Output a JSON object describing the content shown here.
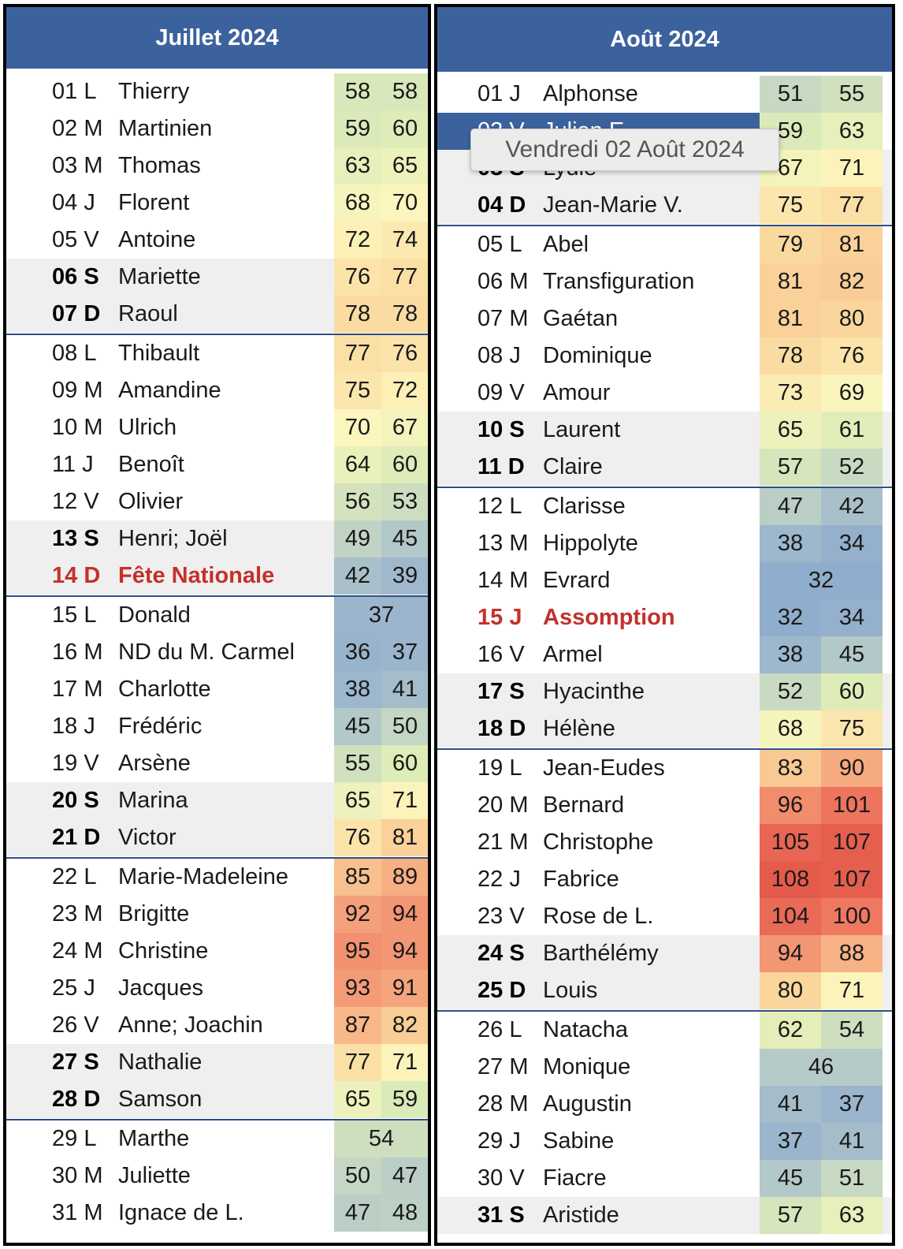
{
  "july": {
    "title": "Juillet 2024",
    "days": [
      {
        "date": "01 L",
        "name": "Thierry",
        "v": [
          58,
          58
        ],
        "weekend": false
      },
      {
        "date": "02 M",
        "name": "Martinien",
        "v": [
          59,
          60
        ],
        "weekend": false
      },
      {
        "date": "03 M",
        "name": "Thomas",
        "v": [
          63,
          65
        ],
        "weekend": false
      },
      {
        "date": "04 J",
        "name": "Florent",
        "v": [
          68,
          70
        ],
        "weekend": false
      },
      {
        "date": "05 V",
        "name": "Antoine",
        "v": [
          72,
          74
        ],
        "weekend": false
      },
      {
        "date": "06 S",
        "name": "Mariette",
        "v": [
          76,
          77
        ],
        "weekend": true
      },
      {
        "date": "07 D",
        "name": "Raoul",
        "v": [
          78,
          78
        ],
        "weekend": true
      },
      {
        "date": "08 L",
        "name": "Thibault",
        "v": [
          77,
          76
        ],
        "weekend": false
      },
      {
        "date": "09 M",
        "name": "Amandine",
        "v": [
          75,
          72
        ],
        "weekend": false
      },
      {
        "date": "10 M",
        "name": "Ulrich",
        "v": [
          70,
          67
        ],
        "weekend": false
      },
      {
        "date": "11 J",
        "name": "Benoît",
        "v": [
          64,
          60
        ],
        "weekend": false
      },
      {
        "date": "12 V",
        "name": "Olivier",
        "v": [
          56,
          53
        ],
        "weekend": false
      },
      {
        "date": "13 S",
        "name": "Henri; Joël",
        "v": [
          49,
          45
        ],
        "weekend": true
      },
      {
        "date": "14 D",
        "name": "Fête Nationale",
        "v": [
          42,
          39
        ],
        "weekend": true,
        "holiday": true
      },
      {
        "date": "15 L",
        "name": "Donald",
        "v": [
          37
        ],
        "weekend": false
      },
      {
        "date": "16 M",
        "name": "ND du M. Carmel",
        "v": [
          36,
          37
        ],
        "weekend": false
      },
      {
        "date": "17 M",
        "name": "Charlotte",
        "v": [
          38,
          41
        ],
        "weekend": false
      },
      {
        "date": "18 J",
        "name": "Frédéric",
        "v": [
          45,
          50
        ],
        "weekend": false
      },
      {
        "date": "19 V",
        "name": "Arsène",
        "v": [
          55,
          60
        ],
        "weekend": false
      },
      {
        "date": "20 S",
        "name": "Marina",
        "v": [
          65,
          71
        ],
        "weekend": true
      },
      {
        "date": "21 D",
        "name": "Victor",
        "v": [
          76,
          81
        ],
        "weekend": true
      },
      {
        "date": "22 L",
        "name": "Marie-Madeleine",
        "v": [
          85,
          89
        ],
        "weekend": false
      },
      {
        "date": "23 M",
        "name": "Brigitte",
        "v": [
          92,
          94
        ],
        "weekend": false
      },
      {
        "date": "24 M",
        "name": "Christine",
        "v": [
          95,
          94
        ],
        "weekend": false
      },
      {
        "date": "25 J",
        "name": "Jacques",
        "v": [
          93,
          91
        ],
        "weekend": false
      },
      {
        "date": "26 V",
        "name": "Anne; Joachin",
        "v": [
          87,
          82
        ],
        "weekend": false
      },
      {
        "date": "27 S",
        "name": "Nathalie",
        "v": [
          77,
          71
        ],
        "weekend": true
      },
      {
        "date": "28 D",
        "name": "Samson",
        "v": [
          65,
          59
        ],
        "weekend": true
      },
      {
        "date": "29 L",
        "name": "Marthe",
        "v": [
          54
        ],
        "weekend": false
      },
      {
        "date": "30 M",
        "name": "Juliette",
        "v": [
          50,
          47
        ],
        "weekend": false
      },
      {
        "date": "31 M",
        "name": "Ignace de L.",
        "v": [
          47,
          48
        ],
        "weekend": false
      }
    ]
  },
  "august": {
    "title": "Août 2024",
    "days": [
      {
        "date": "01 J",
        "name": "Alphonse",
        "v": [
          51,
          55
        ],
        "weekend": false
      },
      {
        "date": "02 V",
        "name": "Julien E.",
        "v": [
          59,
          63
        ],
        "weekend": false,
        "selected": true
      },
      {
        "date": "03 S",
        "name": "Lydie",
        "v": [
          67,
          71
        ],
        "weekend": true
      },
      {
        "date": "04 D",
        "name": "Jean-Marie V.",
        "v": [
          75,
          77
        ],
        "weekend": true
      },
      {
        "date": "05 L",
        "name": "Abel",
        "v": [
          79,
          81
        ],
        "weekend": false
      },
      {
        "date": "06 M",
        "name": "Transfiguration",
        "v": [
          81,
          82
        ],
        "weekend": false
      },
      {
        "date": "07 M",
        "name": "Gaétan",
        "v": [
          81,
          80
        ],
        "weekend": false
      },
      {
        "date": "08 J",
        "name": "Dominique",
        "v": [
          78,
          76
        ],
        "weekend": false
      },
      {
        "date": "09 V",
        "name": "Amour",
        "v": [
          73,
          69
        ],
        "weekend": false
      },
      {
        "date": "10 S",
        "name": "Laurent",
        "v": [
          65,
          61
        ],
        "weekend": true
      },
      {
        "date": "11 D",
        "name": "Claire",
        "v": [
          57,
          52
        ],
        "weekend": true
      },
      {
        "date": "12 L",
        "name": "Clarisse",
        "v": [
          47,
          42
        ],
        "weekend": false
      },
      {
        "date": "13 M",
        "name": "Hippolyte",
        "v": [
          38,
          34
        ],
        "weekend": false
      },
      {
        "date": "14 M",
        "name": "Evrard",
        "v": [
          32
        ],
        "weekend": false
      },
      {
        "date": "15 J",
        "name": "Assomption",
        "v": [
          32,
          34
        ],
        "weekend": false,
        "holiday": true
      },
      {
        "date": "16 V",
        "name": "Armel",
        "v": [
          38,
          45
        ],
        "weekend": false
      },
      {
        "date": "17 S",
        "name": "Hyacinthe",
        "v": [
          52,
          60
        ],
        "weekend": true
      },
      {
        "date": "18 D",
        "name": "Hélène",
        "v": [
          68,
          75
        ],
        "weekend": true
      },
      {
        "date": "19 L",
        "name": "Jean-Eudes",
        "v": [
          83,
          90
        ],
        "weekend": false
      },
      {
        "date": "20 M",
        "name": "Bernard",
        "v": [
          96,
          101
        ],
        "weekend": false
      },
      {
        "date": "21 M",
        "name": "Christophe",
        "v": [
          105,
          107
        ],
        "weekend": false
      },
      {
        "date": "22 J",
        "name": "Fabrice",
        "v": [
          108,
          107
        ],
        "weekend": false
      },
      {
        "date": "23 V",
        "name": "Rose de L.",
        "v": [
          104,
          100
        ],
        "weekend": false
      },
      {
        "date": "24 S",
        "name": "Barthélémy",
        "v": [
          94,
          88
        ],
        "weekend": true
      },
      {
        "date": "25 D",
        "name": "Louis",
        "v": [
          80,
          71
        ],
        "weekend": true
      },
      {
        "date": "26 L",
        "name": "Natacha",
        "v": [
          62,
          54
        ],
        "weekend": false
      },
      {
        "date": "27 M",
        "name": "Monique",
        "v": [
          46
        ],
        "weekend": false
      },
      {
        "date": "28 M",
        "name": "Augustin",
        "v": [
          41,
          37
        ],
        "weekend": false
      },
      {
        "date": "29 J",
        "name": "Sabine",
        "v": [
          37,
          41
        ],
        "weekend": false
      },
      {
        "date": "30 V",
        "name": "Fiacre",
        "v": [
          45,
          51
        ],
        "weekend": false
      },
      {
        "date": "31 S",
        "name": "Aristide",
        "v": [
          57,
          63
        ],
        "weekend": true
      }
    ]
  },
  "tooltip": "Vendredi 02 Août 2024",
  "colors": {
    "header": "#3c629d",
    "separator": "#2e4f86",
    "holiday": "#c4302b",
    "weekend_bg": "#efefef"
  }
}
